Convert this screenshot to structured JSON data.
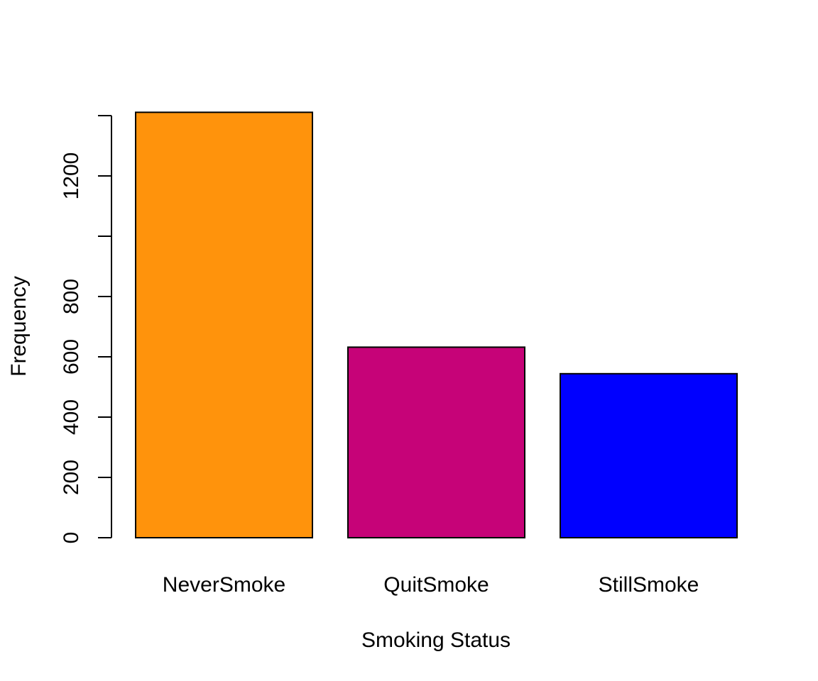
{
  "chart_data": {
    "type": "bar",
    "title": "",
    "xlabel": "Smoking Status",
    "ylabel": "Frequency",
    "categories": [
      "NeverSmoke",
      "QuitSmoke",
      "StillSmoke"
    ],
    "values": [
      1411,
      632,
      544
    ],
    "colors": [
      "#FF930C",
      "#C60378",
      "#0000FF"
    ],
    "bar_border_color": "#000000",
    "ylim": [
      0,
      1400
    ],
    "yticks": [
      0,
      200,
      400,
      600,
      800,
      1000,
      1200,
      1400
    ],
    "ytick_labels": [
      "0",
      "200",
      "400",
      "600",
      "800",
      "",
      "1200",
      ""
    ],
    "grid": false,
    "legend": "none"
  }
}
